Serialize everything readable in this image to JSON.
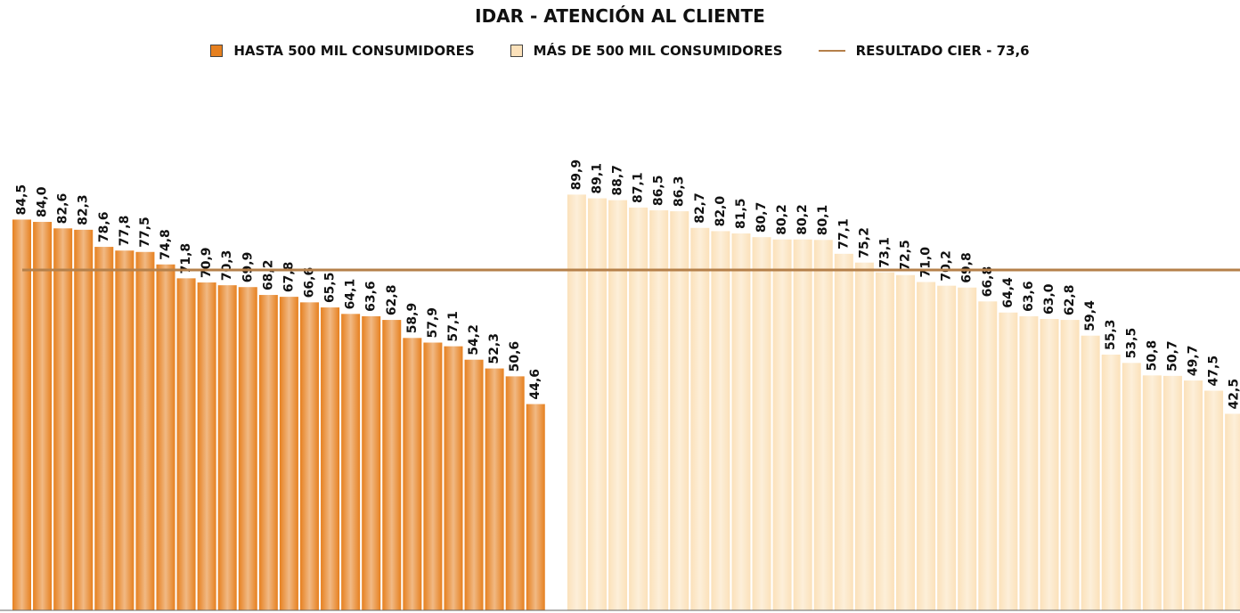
{
  "chart_data": {
    "type": "bar",
    "title": "IDAR - ATENCIÓN AL CLIENTE",
    "ylim": [
      0,
      100
    ],
    "series": [
      {
        "name": "HASTA 500 MIL CONSUMIDORES",
        "color": "#e6801f",
        "values": [
          84.5,
          84.0,
          82.6,
          82.3,
          78.6,
          77.8,
          77.5,
          74.8,
          71.8,
          70.9,
          70.3,
          69.9,
          68.2,
          67.8,
          66.6,
          65.5,
          64.1,
          63.6,
          62.8,
          58.9,
          57.9,
          57.1,
          54.2,
          52.3,
          50.6,
          44.6
        ],
        "value_labels": [
          "84,5",
          "84,0",
          "82,6",
          "82,3",
          "78,6",
          "77,8",
          "77,5",
          "74,8",
          "71,8",
          "70,9",
          "70,3",
          "69,9",
          "68,2",
          "67,8",
          "66,6",
          "65,5",
          "64,1",
          "63,6",
          "62,8",
          "58,9",
          "57,9",
          "57,1",
          "54,2",
          "52,3",
          "50,6",
          "44,6"
        ]
      },
      {
        "name": "MÁS DE 500 MIL CONSUMIDORES",
        "color": "#fbe1ba",
        "values": [
          89.9,
          89.1,
          88.7,
          87.1,
          86.5,
          86.3,
          82.7,
          82.0,
          81.5,
          80.7,
          80.2,
          80.2,
          80.1,
          77.1,
          75.2,
          73.1,
          72.5,
          71.0,
          70.2,
          69.8,
          66.8,
          64.4,
          63.6,
          63.0,
          62.8,
          59.4,
          55.3,
          53.5,
          50.8,
          50.7,
          49.7,
          47.5,
          42.5
        ],
        "value_labels": [
          "89,9",
          "89,1",
          "88,7",
          "87,1",
          "86,5",
          "86,3",
          "82,7",
          "82,0",
          "81,5",
          "80,7",
          "80,2",
          "80,2",
          "80,1",
          "77,1",
          "75,2",
          "73,1",
          "72,5",
          "71,0",
          "70,2",
          "69,8",
          "66,8",
          "64,4",
          "63,6",
          "63,0",
          "62,8",
          "59,4",
          "55,3",
          "53,5",
          "50,8",
          "50,7",
          "49,7",
          "47,5",
          "42,5"
        ]
      }
    ],
    "reference_line": {
      "name": "RESULTADO CIER - 73,6",
      "value": 73.6,
      "color": "#b5804a"
    }
  }
}
